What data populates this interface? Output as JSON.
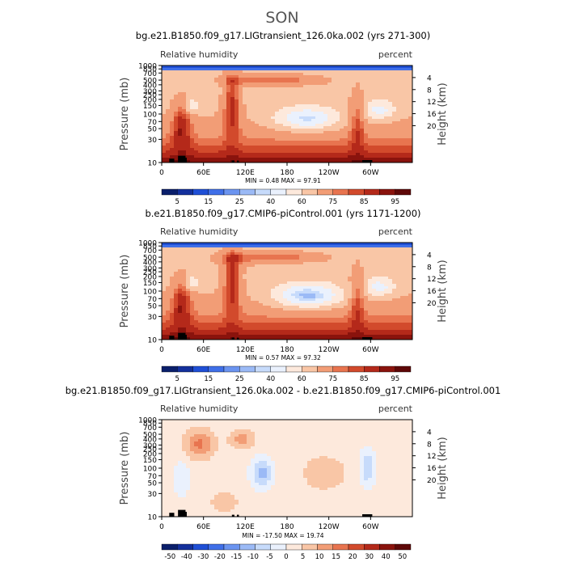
{
  "figure": {
    "season": "SON"
  },
  "palettes": {
    "rh": [
      "#0a1f6b",
      "#13309c",
      "#1f4fd6",
      "#3f6fe8",
      "#6b94f0",
      "#9bbaf6",
      "#c7dbfb",
      "#eaf1fd",
      "#fde9dc",
      "#f9c6a6",
      "#f29d76",
      "#e8744f",
      "#d24a2c",
      "#b4291a",
      "#8a130d",
      "#5e0808"
    ],
    "diff": [
      "#0a1f6b",
      "#13309c",
      "#1f4fd6",
      "#3f6fe8",
      "#6b94f0",
      "#9bbaf6",
      "#c7dbfb",
      "#eaf1fd",
      "#fde9dc",
      "#f9c6a6",
      "#f29d76",
      "#e8744f",
      "#d24a2c",
      "#b4291a",
      "#8a130d",
      "#5e0808"
    ]
  },
  "chart_data": [
    {
      "type": "heatmap",
      "title": "bg.e21.B1850.f09_g17.LIGtransient_126.0ka.002 (yrs 271-300)",
      "left_label": "Relative humidity",
      "right_label": "percent",
      "ylabel": "Pressure (mb)",
      "y2label": "Height (km)",
      "xticks": [
        "0",
        "60E",
        "120E",
        "180",
        "120W",
        "60W"
      ],
      "yticks": [
        "1000",
        "850",
        "700",
        "500",
        "400",
        "300",
        "250",
        "200",
        "150",
        "100",
        "70",
        "50",
        "30",
        "10"
      ],
      "y2ticks": [
        "4",
        "8",
        "12",
        "16",
        "20"
      ],
      "stats": "MIN =    0.48   MAX =   97.91",
      "colorbar_labels": [
        "5",
        "15",
        "25",
        "40",
        "60",
        "75",
        "85",
        "95"
      ],
      "palette": "rh"
    },
    {
      "type": "heatmap",
      "title": "b.e21.B1850.f09_g17.CMIP6-piControl.001 (yrs 1171-1200)",
      "left_label": "Relative humidity",
      "right_label": "percent",
      "ylabel": "Pressure (mb)",
      "y2label": "Height (km)",
      "xticks": [
        "0",
        "60E",
        "120E",
        "180",
        "120W",
        "60W"
      ],
      "yticks": [
        "1000",
        "850",
        "700",
        "500",
        "400",
        "300",
        "250",
        "200",
        "150",
        "100",
        "70",
        "50",
        "30",
        "10"
      ],
      "y2ticks": [
        "4",
        "8",
        "12",
        "16",
        "20"
      ],
      "stats": "MIN =    0.57   MAX =   97.32",
      "colorbar_labels": [
        "5",
        "15",
        "25",
        "40",
        "60",
        "75",
        "85",
        "95"
      ],
      "palette": "rh"
    },
    {
      "type": "heatmap",
      "title": "bg.e21.B1850.f09_g17.LIGtransient_126.0ka.002 - b.e21.B1850.f09_g17.CMIP6-piControl.001",
      "left_label": "Relative humidity",
      "right_label": "percent",
      "ylabel": "Pressure (mb)",
      "y2label": "Height (km)",
      "xticks": [
        "0",
        "60E",
        "120E",
        "180",
        "120W",
        "60W"
      ],
      "yticks": [
        "1000",
        "850",
        "700",
        "500",
        "400",
        "300",
        "250",
        "200",
        "150",
        "100",
        "70",
        "50",
        "30",
        "10"
      ],
      "y2ticks": [
        "4",
        "8",
        "12",
        "16",
        "20"
      ],
      "stats": "MIN =  -17.50   MAX =   19.74",
      "colorbar_labels": [
        "-50",
        "-40",
        "-30",
        "-20",
        "-15",
        "-10",
        "-5",
        "0",
        "5",
        "10",
        "15",
        "20",
        "30",
        "40",
        "50"
      ],
      "palette": "diff"
    }
  ]
}
